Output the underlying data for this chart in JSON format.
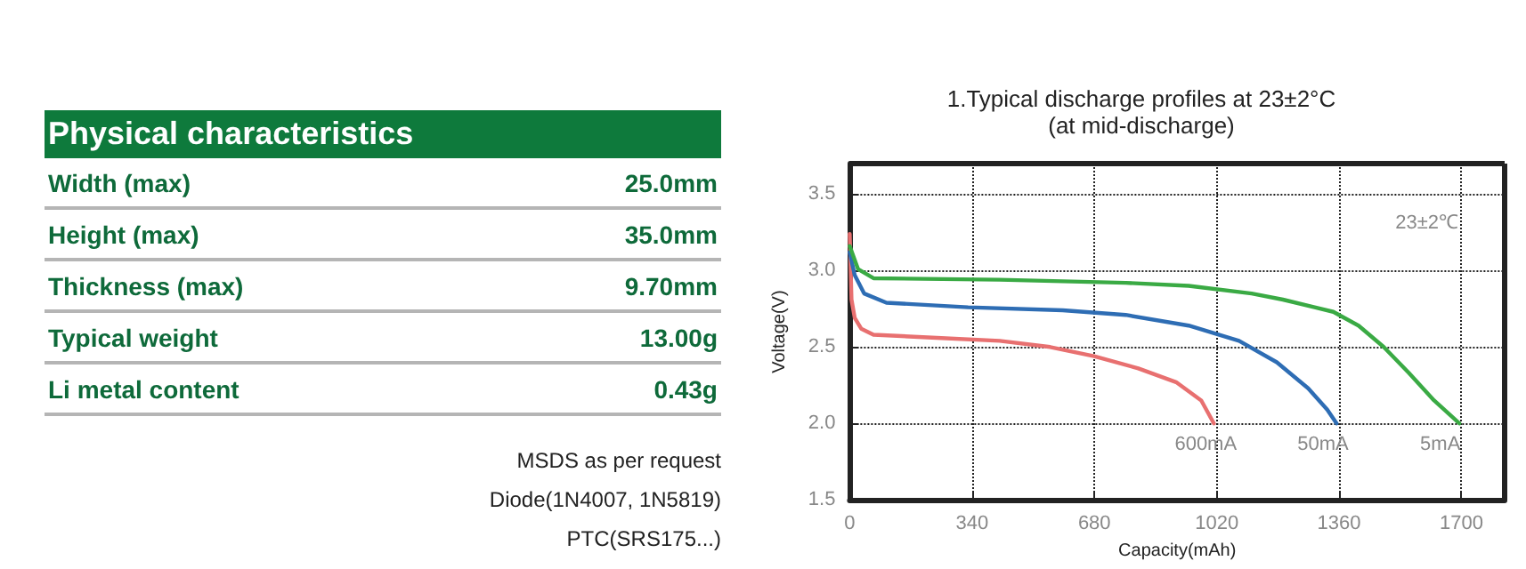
{
  "chart_data": [
    {
      "type": "other",
      "title": "Physical characteristics",
      "categories": [
        "Width (max)",
        "Height (max)",
        "Thickness (max)",
        "Typical weight",
        "Li metal content"
      ],
      "value_labels": [
        "25.0mm",
        "35.0mm",
        "9.70mm",
        "13.00g",
        "0.43g"
      ],
      "annotations": [
        "MSDS as per request",
        "Diode(1N4007, 1N5819)",
        "PTC(SRS175...)"
      ]
    },
    {
      "type": "line",
      "title": "1.Typical discharge profiles at 23±2°C",
      "subtitle": "(at mid-discharge)",
      "xlabel": "Capacity(mAh)",
      "ylabel": "Voltage(V)",
      "annotations": [
        "23±2℃"
      ],
      "xlim": [
        0,
        1820
      ],
      "xticks": [
        0,
        340,
        680,
        1020,
        1360,
        1700
      ],
      "ylim": [
        1.5,
        3.7
      ],
      "yticks": [
        {
          "value": 1.5,
          "label": "1.5"
        },
        {
          "value": 2.0,
          "label": "2.0"
        },
        {
          "value": 2.5,
          "label": "2.5"
        },
        {
          "value": 3.0,
          "label": "3.0"
        },
        {
          "value": 3.5,
          "label": "3.5"
        }
      ],
      "grid": true,
      "legend": false,
      "marker": "none",
      "line_style": "solid",
      "series": [
        {
          "name": "600mA",
          "color": "#e87070",
          "x": [
            0,
            5,
            14,
            32,
            66,
            242,
            417,
            557,
            679,
            802,
            907,
            977,
            1012
          ],
          "values": [
            3.24,
            2.81,
            2.69,
            2.62,
            2.58,
            2.56,
            2.54,
            2.5,
            2.44,
            2.36,
            2.27,
            2.15,
            2.0
          ]
        },
        {
          "name": "50mA",
          "color": "#2e6db4",
          "x": [
            0,
            14,
            40,
            102,
            329,
            592,
            767,
            942,
            1082,
            1187,
            1274,
            1327,
            1353
          ],
          "values": [
            3.12,
            2.97,
            2.85,
            2.79,
            2.76,
            2.74,
            2.71,
            2.64,
            2.54,
            2.4,
            2.23,
            2.09,
            2.0
          ]
        },
        {
          "name": "5mA",
          "color": "#3aaa44",
          "x": [
            0,
            23,
            66,
            416,
            767,
            942,
            1117,
            1204,
            1292,
            1344,
            1414,
            1484,
            1554,
            1624,
            1694
          ],
          "values": [
            3.16,
            3.01,
            2.95,
            2.94,
            2.92,
            2.9,
            2.85,
            2.81,
            2.76,
            2.73,
            2.64,
            2.5,
            2.33,
            2.15,
            2.0
          ]
        }
      ]
    }
  ]
}
